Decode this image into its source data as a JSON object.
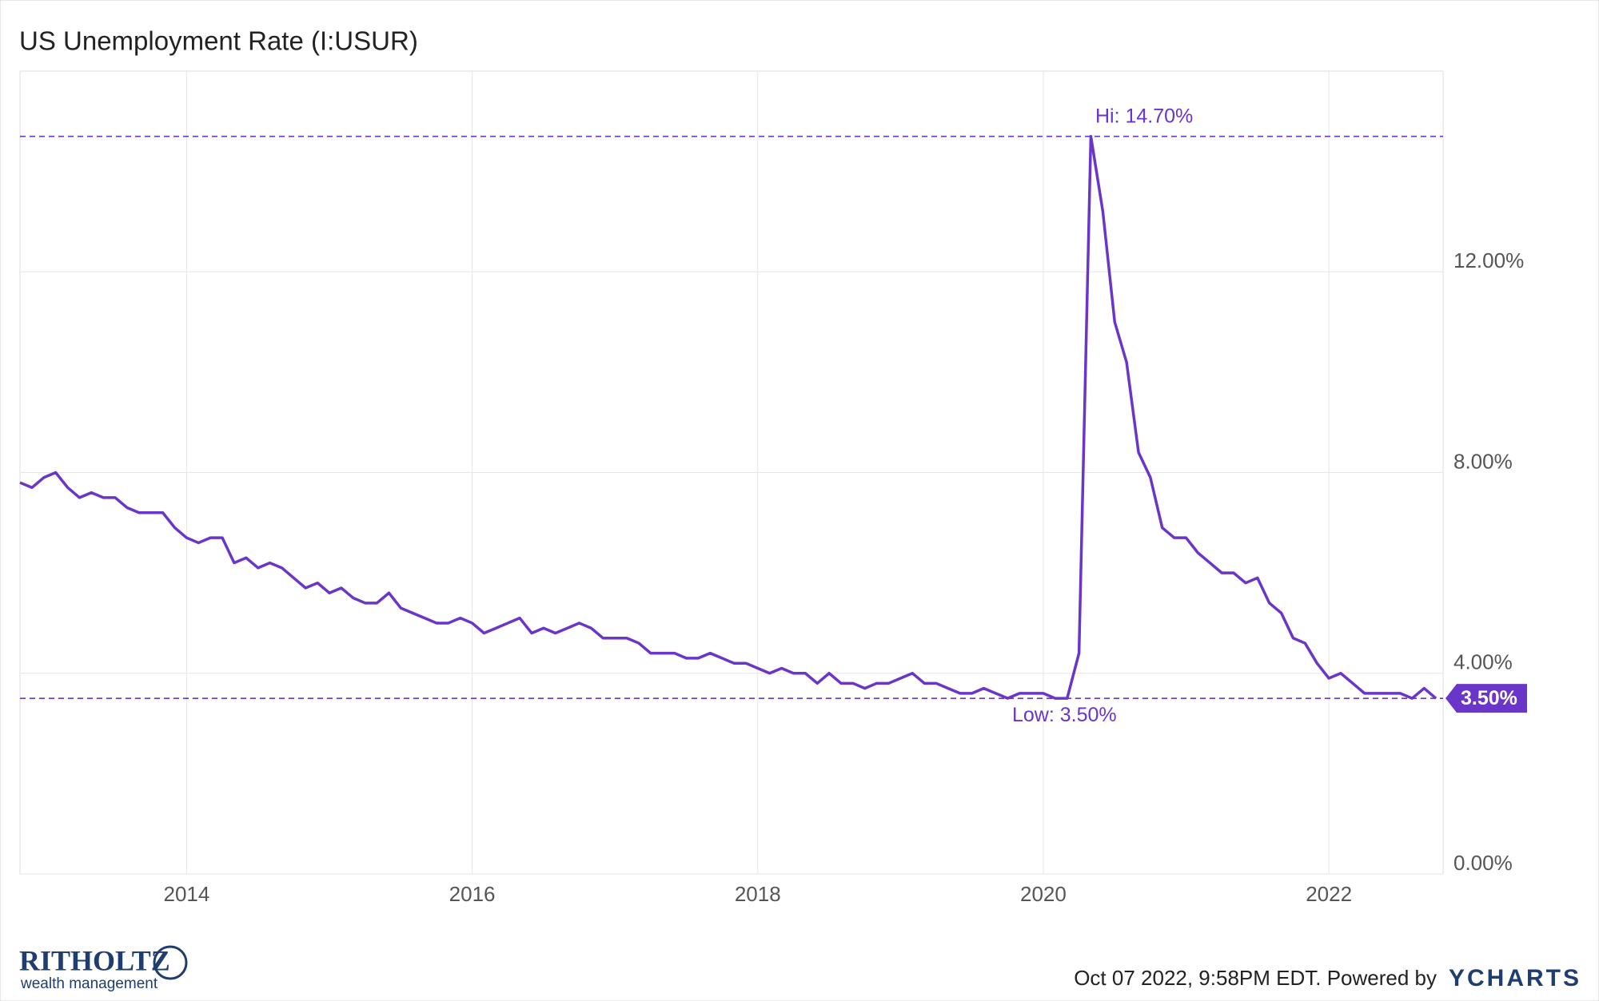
{
  "chart_data": {
    "type": "line",
    "title": "US Unemployment Rate (I:USUR)",
    "x": [
      2012.833,
      2012.917,
      2013.0,
      2013.083,
      2013.167,
      2013.25,
      2013.333,
      2013.417,
      2013.5,
      2013.583,
      2013.667,
      2013.75,
      2013.833,
      2013.917,
      2014.0,
      2014.083,
      2014.167,
      2014.25,
      2014.333,
      2014.417,
      2014.5,
      2014.583,
      2014.667,
      2014.75,
      2014.833,
      2014.917,
      2015.0,
      2015.083,
      2015.167,
      2015.25,
      2015.333,
      2015.417,
      2015.5,
      2015.583,
      2015.667,
      2015.75,
      2015.833,
      2015.917,
      2016.0,
      2016.083,
      2016.167,
      2016.25,
      2016.333,
      2016.417,
      2016.5,
      2016.583,
      2016.667,
      2016.75,
      2016.833,
      2016.917,
      2017.0,
      2017.083,
      2017.167,
      2017.25,
      2017.333,
      2017.417,
      2017.5,
      2017.583,
      2017.667,
      2017.75,
      2017.833,
      2017.917,
      2018.0,
      2018.083,
      2018.167,
      2018.25,
      2018.333,
      2018.417,
      2018.5,
      2018.583,
      2018.667,
      2018.75,
      2018.833,
      2018.917,
      2019.0,
      2019.083,
      2019.167,
      2019.25,
      2019.333,
      2019.417,
      2019.5,
      2019.583,
      2019.667,
      2019.75,
      2019.833,
      2019.917,
      2020.0,
      2020.083,
      2020.167,
      2020.25,
      2020.333,
      2020.417,
      2020.5,
      2020.583,
      2020.667,
      2020.75,
      2020.833,
      2020.917,
      2021.0,
      2021.083,
      2021.167,
      2021.25,
      2021.333,
      2021.417,
      2021.5,
      2021.583,
      2021.667,
      2021.75,
      2021.833,
      2021.917,
      2022.0,
      2022.083,
      2022.167,
      2022.25,
      2022.333,
      2022.417,
      2022.5,
      2022.583,
      2022.667,
      2022.75
    ],
    "series": [
      {
        "name": "US Unemployment Rate",
        "color": "#6a35c9",
        "values": [
          7.8,
          7.7,
          7.9,
          8.0,
          7.7,
          7.5,
          7.6,
          7.5,
          7.5,
          7.3,
          7.2,
          7.2,
          7.2,
          6.9,
          6.7,
          6.6,
          6.7,
          6.7,
          6.2,
          6.3,
          6.1,
          6.2,
          6.1,
          5.9,
          5.7,
          5.8,
          5.6,
          5.7,
          5.5,
          5.4,
          5.4,
          5.6,
          5.3,
          5.2,
          5.1,
          5.0,
          5.0,
          5.1,
          5.0,
          4.8,
          4.9,
          5.0,
          5.1,
          4.8,
          4.9,
          4.8,
          4.9,
          5.0,
          4.9,
          4.7,
          4.7,
          4.7,
          4.6,
          4.4,
          4.4,
          4.4,
          4.3,
          4.3,
          4.4,
          4.3,
          4.2,
          4.2,
          4.1,
          4.0,
          4.1,
          4.0,
          4.0,
          3.8,
          4.0,
          3.8,
          3.8,
          3.7,
          3.8,
          3.8,
          3.9,
          4.0,
          3.8,
          3.8,
          3.7,
          3.6,
          3.6,
          3.7,
          3.6,
          3.5,
          3.6,
          3.6,
          3.6,
          3.5,
          3.5,
          4.4,
          14.7,
          13.2,
          11.0,
          10.2,
          8.4,
          7.9,
          6.9,
          6.7,
          6.7,
          6.4,
          6.2,
          6.0,
          6.0,
          5.8,
          5.9,
          5.4,
          5.2,
          4.7,
          4.6,
          4.2,
          3.9,
          4.0,
          3.8,
          3.6,
          3.6,
          3.6,
          3.6,
          3.5,
          3.7,
          3.5
        ]
      }
    ],
    "xlim": [
      2012.833,
      2022.8
    ],
    "xticks": [
      2014,
      2016,
      2018,
      2020,
      2022
    ],
    "ylim": [
      0,
      16
    ],
    "yticks": [
      {
        "value": 0,
        "label": "0.00%"
      },
      {
        "value": 4,
        "label": "4.00%"
      },
      {
        "value": 8,
        "label": "8.00%"
      },
      {
        "value": 12,
        "label": "12.00%"
      }
    ],
    "grid": true,
    "annotations": [
      {
        "value": 14.7,
        "label": "Hi: 14.70%"
      },
      {
        "value": 3.5,
        "label": "Low: 3.50%"
      }
    ],
    "last_value": {
      "value": 3.5,
      "label": "3.50%"
    },
    "footer": {
      "timestamp": "Oct 07 2022, 9:58PM EDT. Powered by",
      "brand": "YCHARTS",
      "logo": "RITHOLTZ",
      "logo_sub": "wealth management"
    }
  }
}
